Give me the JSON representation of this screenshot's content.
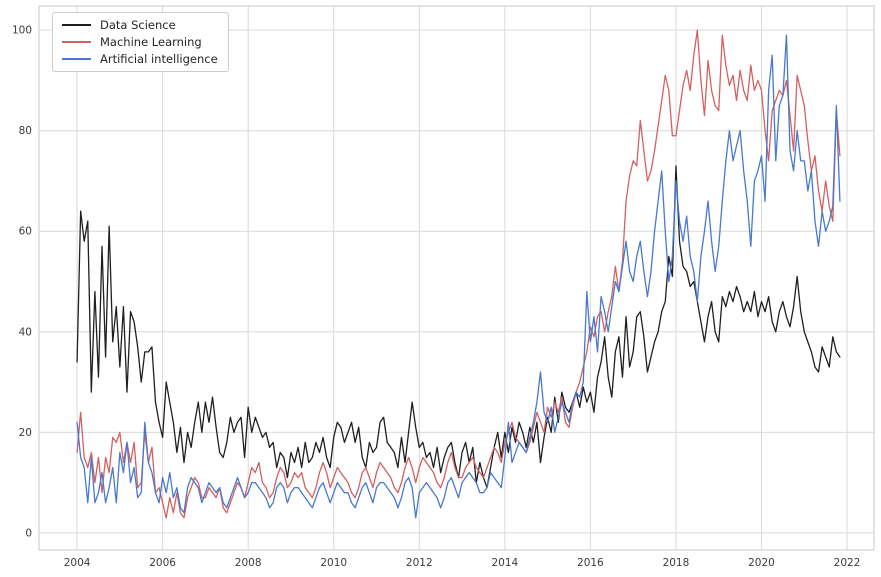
{
  "chart_data": {
    "type": "line",
    "title": "",
    "xlabel": "",
    "ylabel": "",
    "grid": true,
    "legend_position": "upper left",
    "x_start": "2004-01",
    "x_frequency": "monthly",
    "x_axis": {
      "ticks": [
        2004,
        2006,
        2008,
        2010,
        2012,
        2014,
        2016,
        2018,
        2020,
        2022
      ],
      "range": [
        2003.11,
        2022.63
      ]
    },
    "y_axis": {
      "ticks": [
        0,
        20,
        40,
        60,
        80,
        100
      ],
      "range": [
        -3.4,
        104.8
      ]
    },
    "series": [
      {
        "name": "Data Science",
        "color": "#1f1f1f",
        "values": [
          34,
          64,
          58,
          62,
          28,
          48,
          31,
          57,
          35,
          61,
          38,
          45,
          33,
          45,
          28,
          44,
          42,
          37,
          30,
          36,
          36,
          37,
          26,
          22,
          19,
          30,
          26,
          22,
          16,
          21,
          14,
          20,
          17,
          22,
          26,
          20,
          26,
          22,
          27,
          21,
          16,
          15,
          18,
          23,
          20,
          22,
          23,
          15,
          25,
          20,
          23,
          21,
          19,
          20,
          17,
          18,
          13,
          16,
          15,
          11,
          16,
          14,
          17,
          13,
          18,
          14,
          15,
          18,
          16,
          19,
          15,
          13,
          19,
          22,
          21,
          18,
          20,
          22,
          18,
          21,
          15,
          13,
          18,
          16,
          17,
          22,
          23,
          18,
          17,
          16,
          13,
          19,
          14,
          20,
          26,
          21,
          17,
          18,
          15,
          16,
          13,
          17,
          12,
          15,
          17,
          18,
          14,
          11,
          16,
          18,
          14,
          17,
          10,
          14,
          11,
          9,
          13,
          17,
          20,
          15,
          20,
          16,
          21,
          18,
          22,
          20,
          17,
          21,
          18,
          22,
          14,
          19,
          23,
          20,
          27,
          22,
          28,
          25,
          24,
          26,
          28,
          25,
          29,
          26,
          28,
          24,
          31,
          34,
          39,
          31,
          27,
          36,
          39,
          31,
          43,
          33,
          36,
          43,
          44,
          39,
          32,
          35,
          38,
          40,
          44,
          46,
          55,
          51,
          73,
          58,
          53,
          52,
          49,
          50,
          46,
          42,
          38,
          43,
          46,
          40,
          38,
          47,
          45,
          48,
          46,
          49,
          47,
          44,
          46,
          44,
          48,
          43,
          46,
          44,
          47,
          42,
          40,
          44,
          46,
          43,
          41,
          45,
          51,
          44,
          40,
          38,
          36,
          33,
          32,
          37,
          35,
          33,
          39,
          36,
          35
        ]
      },
      {
        "name": "Machine Learning",
        "color": "#d65f5f",
        "values": [
          16,
          24,
          15,
          13,
          16,
          10,
          15,
          8,
          15,
          12,
          19,
          18,
          20,
          14,
          18,
          14,
          18,
          9,
          10,
          20,
          14,
          17,
          8,
          9,
          6,
          3,
          7,
          4,
          8,
          4,
          3,
          7,
          9,
          11,
          10,
          7,
          7,
          9,
          8,
          7,
          9,
          5,
          4,
          6,
          8,
          10,
          9,
          7,
          10,
          13,
          12,
          14,
          10,
          9,
          7,
          8,
          11,
          13,
          12,
          9,
          10,
          12,
          11,
          12,
          9,
          8,
          7,
          9,
          12,
          14,
          12,
          9,
          11,
          13,
          12,
          11,
          10,
          8,
          7,
          9,
          12,
          13,
          11,
          9,
          12,
          14,
          13,
          12,
          11,
          9,
          8,
          10,
          13,
          15,
          13,
          10,
          13,
          15,
          14,
          13,
          12,
          10,
          9,
          11,
          14,
          16,
          13,
          11,
          11,
          13,
          14,
          15,
          13,
          12,
          11,
          13,
          15,
          17,
          16,
          14,
          18,
          20,
          22,
          19,
          18,
          17,
          16,
          18,
          21,
          24,
          22,
          20,
          25,
          23,
          26,
          24,
          27,
          22,
          21,
          25,
          28,
          30,
          33,
          36,
          41,
          39,
          43,
          44,
          40,
          44,
          47,
          53,
          48,
          54,
          66,
          71,
          74,
          73,
          82,
          76,
          70,
          72,
          76,
          81,
          86,
          91,
          88,
          79,
          79,
          84,
          89,
          92,
          88,
          95,
          100,
          90,
          83,
          94,
          88,
          85,
          84,
          99,
          93,
          89,
          91,
          86,
          92,
          88,
          86,
          93,
          88,
          90,
          88,
          80,
          74,
          84,
          86,
          88,
          87,
          90,
          83,
          76,
          91,
          88,
          85,
          78,
          72,
          75,
          68,
          64,
          70,
          65,
          62,
          84,
          75
        ]
      },
      {
        "name": "Artificial intelligence",
        "color": "#4878d0",
        "values": [
          22,
          15,
          13,
          6,
          15,
          6,
          8,
          12,
          6,
          9,
          13,
          6,
          16,
          12,
          18,
          10,
          13,
          7,
          8,
          22,
          14,
          12,
          8,
          6,
          11,
          8,
          12,
          7,
          9,
          5,
          4,
          9,
          11,
          10,
          9,
          6,
          8,
          10,
          9,
          8,
          9,
          6,
          5,
          7,
          9,
          11,
          9,
          7,
          8,
          10,
          10,
          9,
          8,
          7,
          5,
          6,
          9,
          10,
          9,
          6,
          8,
          9,
          9,
          8,
          7,
          6,
          5,
          7,
          9,
          10,
          8,
          6,
          8,
          10,
          9,
          8,
          8,
          6,
          5,
          7,
          9,
          10,
          8,
          6,
          9,
          10,
          10,
          9,
          8,
          7,
          5,
          7,
          10,
          11,
          9,
          3,
          8,
          9,
          10,
          9,
          8,
          7,
          5,
          7,
          10,
          11,
          9,
          7,
          10,
          11,
          12,
          11,
          10,
          8,
          8,
          9,
          12,
          11,
          10,
          9,
          15,
          22,
          14,
          16,
          18,
          17,
          16,
          19,
          22,
          26,
          32,
          24,
          22,
          25,
          20,
          23,
          26,
          24,
          22,
          26,
          28,
          27,
          30,
          48,
          38,
          43,
          36,
          47,
          44,
          40,
          45,
          50,
          48,
          53,
          58,
          52,
          50,
          55,
          58,
          52,
          47,
          52,
          60,
          66,
          72,
          60,
          50,
          55,
          70,
          62,
          58,
          63,
          55,
          52,
          46,
          55,
          60,
          66,
          58,
          52,
          57,
          66,
          74,
          80,
          74,
          77,
          80,
          72,
          66,
          57,
          70,
          72,
          75,
          66,
          88,
          95,
          74,
          85,
          87,
          99,
          76,
          72,
          80,
          74,
          74,
          68,
          72,
          62,
          57,
          64,
          60,
          62,
          65,
          85,
          66
        ]
      }
    ]
  },
  "style": {
    "grid_color": "#d9d9d9",
    "spine_color": "#c9c9c9",
    "tick_label_color": "#3c3c3c",
    "background": "#ffffff"
  }
}
